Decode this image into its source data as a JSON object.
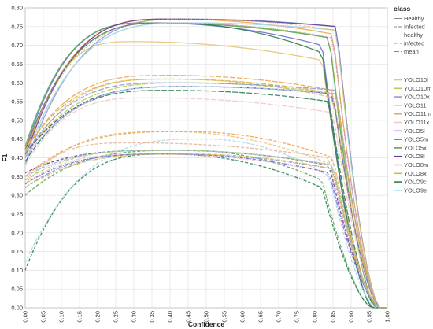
{
  "chart_data": {
    "type": "line",
    "title": "",
    "xlabel": "Confidence",
    "ylabel": "F1",
    "xlim": [
      0,
      1
    ],
    "ylim": [
      0,
      0.8
    ],
    "x_ticks": [
      "0.00",
      "0.05",
      "0.10",
      "0.15",
      "0.20",
      "0.25",
      "0.30",
      "0.35",
      "0.40",
      "0.45",
      "0.50",
      "0.55",
      "0.60",
      "0.65",
      "0.70",
      "0.75",
      "0.80",
      "0.85",
      "0.90",
      "0.95",
      "1.00"
    ],
    "y_ticks": [
      "0.00",
      "0.05",
      "0.10",
      "0.15",
      "0.20",
      "0.25",
      "0.30",
      "0.35",
      "0.40",
      "0.45",
      "0.50",
      "0.55",
      "0.60",
      "0.65",
      "0.70",
      "0.75",
      "0.80"
    ],
    "grid": true,
    "legend_class": {
      "title": "class",
      "items": [
        {
          "label": "Healthy",
          "dash": "solid"
        },
        {
          "label": "Infected",
          "dash": "dashed"
        },
        {
          "label": "healthy",
          "dash": "dotted"
        },
        {
          "label": "infected",
          "dash": "dashdot"
        },
        {
          "label": "mean",
          "dash": "longdash"
        }
      ]
    },
    "legend_model": {
      "items": [
        {
          "label": "YOLO10l",
          "color": "#e4c57a"
        },
        {
          "label": "YOLO10m",
          "color": "#b3cf54"
        },
        {
          "label": "YOLO10x",
          "color": "#8a9bd6"
        },
        {
          "label": "YOLO11l",
          "color": "#9fd4cf"
        },
        {
          "label": "YOLO11m",
          "color": "#f0a44c"
        },
        {
          "label": "YOLO11x",
          "color": "#efc9c9"
        },
        {
          "label": "YOLO5l",
          "color": "#c07fd0"
        },
        {
          "label": "YOLO5m",
          "color": "#6d6fcf"
        },
        {
          "label": "YOLO5x",
          "color": "#58a85a"
        },
        {
          "label": "YOLO8l",
          "color": "#6a3d9a"
        },
        {
          "label": "YOLO8m",
          "color": "#e9b3a0"
        },
        {
          "label": "YOLO8x",
          "color": "#d9b54a"
        },
        {
          "label": "YOLO9c",
          "color": "#2f7f4f"
        },
        {
          "label": "YOLO9e",
          "color": "#a8d8e8"
        }
      ]
    },
    "series": [
      {
        "model": "YOLO10l",
        "class": "Healthy",
        "start": 0.4,
        "peak": 0.71,
        "x_peak": 0.3,
        "end_y": 0.66,
        "x_end": 0.82,
        "x_drop": 0.94
      },
      {
        "model": "YOLO10m",
        "class": "Healthy",
        "start": 0.42,
        "peak": 0.76,
        "x_peak": 0.4,
        "end_y": 0.72,
        "x_end": 0.84,
        "x_drop": 0.95
      },
      {
        "model": "YOLO10x",
        "class": "Healthy",
        "start": 0.38,
        "peak": 0.77,
        "x_peak": 0.45,
        "end_y": 0.75,
        "x_end": 0.86,
        "x_drop": 0.95
      },
      {
        "model": "YOLO11l",
        "class": "Healthy",
        "start": 0.4,
        "peak": 0.76,
        "x_peak": 0.45,
        "end_y": 0.74,
        "x_end": 0.86,
        "x_drop": 0.95
      },
      {
        "model": "YOLO11m",
        "class": "Healthy",
        "start": 0.41,
        "peak": 0.77,
        "x_peak": 0.4,
        "end_y": 0.73,
        "x_end": 0.85,
        "x_drop": 0.95
      },
      {
        "model": "YOLO5m",
        "class": "Healthy",
        "start": 0.42,
        "peak": 0.76,
        "x_peak": 0.35,
        "end_y": 0.7,
        "x_end": 0.82,
        "x_drop": 0.93
      },
      {
        "model": "YOLO5x",
        "class": "Healthy",
        "start": 0.43,
        "peak": 0.76,
        "x_peak": 0.35,
        "end_y": 0.72,
        "x_end": 0.84,
        "x_drop": 0.94
      },
      {
        "model": "YOLO8l",
        "class": "Healthy",
        "start": 0.4,
        "peak": 0.77,
        "x_peak": 0.4,
        "end_y": 0.75,
        "x_end": 0.86,
        "x_drop": 0.95
      },
      {
        "model": "YOLO9c",
        "class": "Healthy",
        "start": 0.42,
        "peak": 0.76,
        "x_peak": 0.4,
        "end_y": 0.68,
        "x_end": 0.82,
        "x_drop": 0.93
      },
      {
        "model": "YOLO9e",
        "class": "Healthy",
        "start": 0.4,
        "peak": 0.76,
        "x_peak": 0.45,
        "end_y": 0.74,
        "x_end": 0.86,
        "x_drop": 0.95
      },
      {
        "model": "YOLO8x",
        "class": "healthy",
        "start": 0.43,
        "peak": 0.77,
        "x_peak": 0.45,
        "end_y": 0.74,
        "x_end": 0.86,
        "x_drop": 0.95
      },
      {
        "model": "YOLO5l",
        "class": "healthy",
        "start": 0.42,
        "peak": 0.76,
        "x_peak": 0.4,
        "end_y": 0.72,
        "x_end": 0.85,
        "x_drop": 0.95
      },
      {
        "model": "YOLO10l",
        "class": "mean",
        "start": 0.4,
        "peak": 0.61,
        "x_peak": 0.4,
        "end_y": 0.56,
        "x_end": 0.85,
        "x_drop": 0.95
      },
      {
        "model": "YOLO10m",
        "class": "mean",
        "start": 0.41,
        "peak": 0.6,
        "x_peak": 0.45,
        "end_y": 0.57,
        "x_end": 0.85,
        "x_drop": 0.95
      },
      {
        "model": "YOLO11m",
        "class": "mean",
        "start": 0.42,
        "peak": 0.62,
        "x_peak": 0.4,
        "end_y": 0.58,
        "x_end": 0.85,
        "x_drop": 0.95
      },
      {
        "model": "YOLO11x",
        "class": "mean",
        "start": 0.38,
        "peak": 0.56,
        "x_peak": 0.35,
        "end_y": 0.52,
        "x_end": 0.85,
        "x_drop": 0.95
      },
      {
        "model": "YOLO5m",
        "class": "mean",
        "start": 0.4,
        "peak": 0.59,
        "x_peak": 0.45,
        "end_y": 0.57,
        "x_end": 0.85,
        "x_drop": 0.95
      },
      {
        "model": "YOLO8l",
        "class": "mean",
        "start": 0.41,
        "peak": 0.59,
        "x_peak": 0.45,
        "end_y": 0.57,
        "x_end": 0.86,
        "x_drop": 0.95
      },
      {
        "model": "YOLO9c",
        "class": "mean",
        "start": 0.39,
        "peak": 0.58,
        "x_peak": 0.4,
        "end_y": 0.55,
        "x_end": 0.84,
        "x_drop": 0.94
      },
      {
        "model": "YOLO9e",
        "class": "mean",
        "start": 0.4,
        "peak": 0.59,
        "x_peak": 0.45,
        "end_y": 0.57,
        "x_end": 0.86,
        "x_drop": 0.95
      },
      {
        "model": "YOLO10x",
        "class": "mean",
        "start": 0.41,
        "peak": 0.6,
        "x_peak": 0.4,
        "end_y": 0.58,
        "x_end": 0.86,
        "x_drop": 0.95
      },
      {
        "model": "YOLO8x",
        "class": "mean",
        "start": 0.42,
        "peak": 0.61,
        "x_peak": 0.4,
        "end_y": 0.57,
        "x_end": 0.86,
        "x_drop": 0.95
      },
      {
        "model": "YOLO10l",
        "class": "Infected",
        "start": 0.33,
        "peak": 0.47,
        "x_peak": 0.4,
        "end_y": 0.38,
        "x_end": 0.85,
        "x_drop": 0.95
      },
      {
        "model": "YOLO11m",
        "class": "Infected",
        "start": 0.35,
        "peak": 0.47,
        "x_peak": 0.45,
        "end_y": 0.4,
        "x_end": 0.85,
        "x_drop": 0.95
      },
      {
        "model": "YOLO5x",
        "class": "Infected",
        "start": 0.3,
        "peak": 0.42,
        "x_peak": 0.45,
        "end_y": 0.34,
        "x_end": 0.82,
        "x_drop": 0.93
      },
      {
        "model": "YOLO9c",
        "class": "Infected",
        "start": 0.1,
        "peak": 0.41,
        "x_peak": 0.4,
        "end_y": 0.32,
        "x_end": 0.82,
        "x_drop": 0.93
      },
      {
        "model": "YOLO9e",
        "class": "Infected",
        "start": 0.12,
        "peak": 0.45,
        "x_peak": 0.5,
        "end_y": 0.35,
        "x_end": 0.84,
        "x_drop": 0.94
      },
      {
        "model": "YOLO8l",
        "class": "Infected",
        "start": 0.36,
        "peak": 0.42,
        "x_peak": 0.4,
        "end_y": 0.38,
        "x_end": 0.84,
        "x_drop": 0.95
      },
      {
        "model": "YOLO8m",
        "class": "Infected",
        "start": 0.34,
        "peak": 0.44,
        "x_peak": 0.3,
        "end_y": 0.4,
        "x_end": 0.84,
        "x_drop": 0.95
      },
      {
        "model": "YOLO11x",
        "class": "infected",
        "start": 0.33,
        "peak": 0.41,
        "x_peak": 0.35,
        "end_y": 0.36,
        "x_end": 0.84,
        "x_drop": 0.95
      },
      {
        "model": "YOLO5l",
        "class": "infected",
        "start": 0.35,
        "peak": 0.42,
        "x_peak": 0.4,
        "end_y": 0.38,
        "x_end": 0.85,
        "x_drop": 0.95
      },
      {
        "model": "YOLO10m",
        "class": "infected",
        "start": 0.34,
        "peak": 0.42,
        "x_peak": 0.4,
        "end_y": 0.38,
        "x_end": 0.85,
        "x_drop": 0.95
      },
      {
        "model": "YOLO10x",
        "class": "infected",
        "start": 0.32,
        "peak": 0.41,
        "x_peak": 0.4,
        "end_y": 0.37,
        "x_end": 0.85,
        "x_drop": 0.95
      },
      {
        "model": "YOLO11l",
        "class": "infected",
        "start": 0.35,
        "peak": 0.42,
        "x_peak": 0.4,
        "end_y": 0.38,
        "x_end": 0.85,
        "x_drop": 0.95
      },
      {
        "model": "YOLO5m",
        "class": "infected",
        "start": 0.33,
        "peak": 0.41,
        "x_peak": 0.4,
        "end_y": 0.36,
        "x_end": 0.84,
        "x_drop": 0.95
      },
      {
        "model": "YOLO8x",
        "class": "infected",
        "start": 0.32,
        "peak": 0.41,
        "x_peak": 0.45,
        "end_y": 0.37,
        "x_end": 0.85,
        "x_drop": 0.95
      }
    ]
  }
}
